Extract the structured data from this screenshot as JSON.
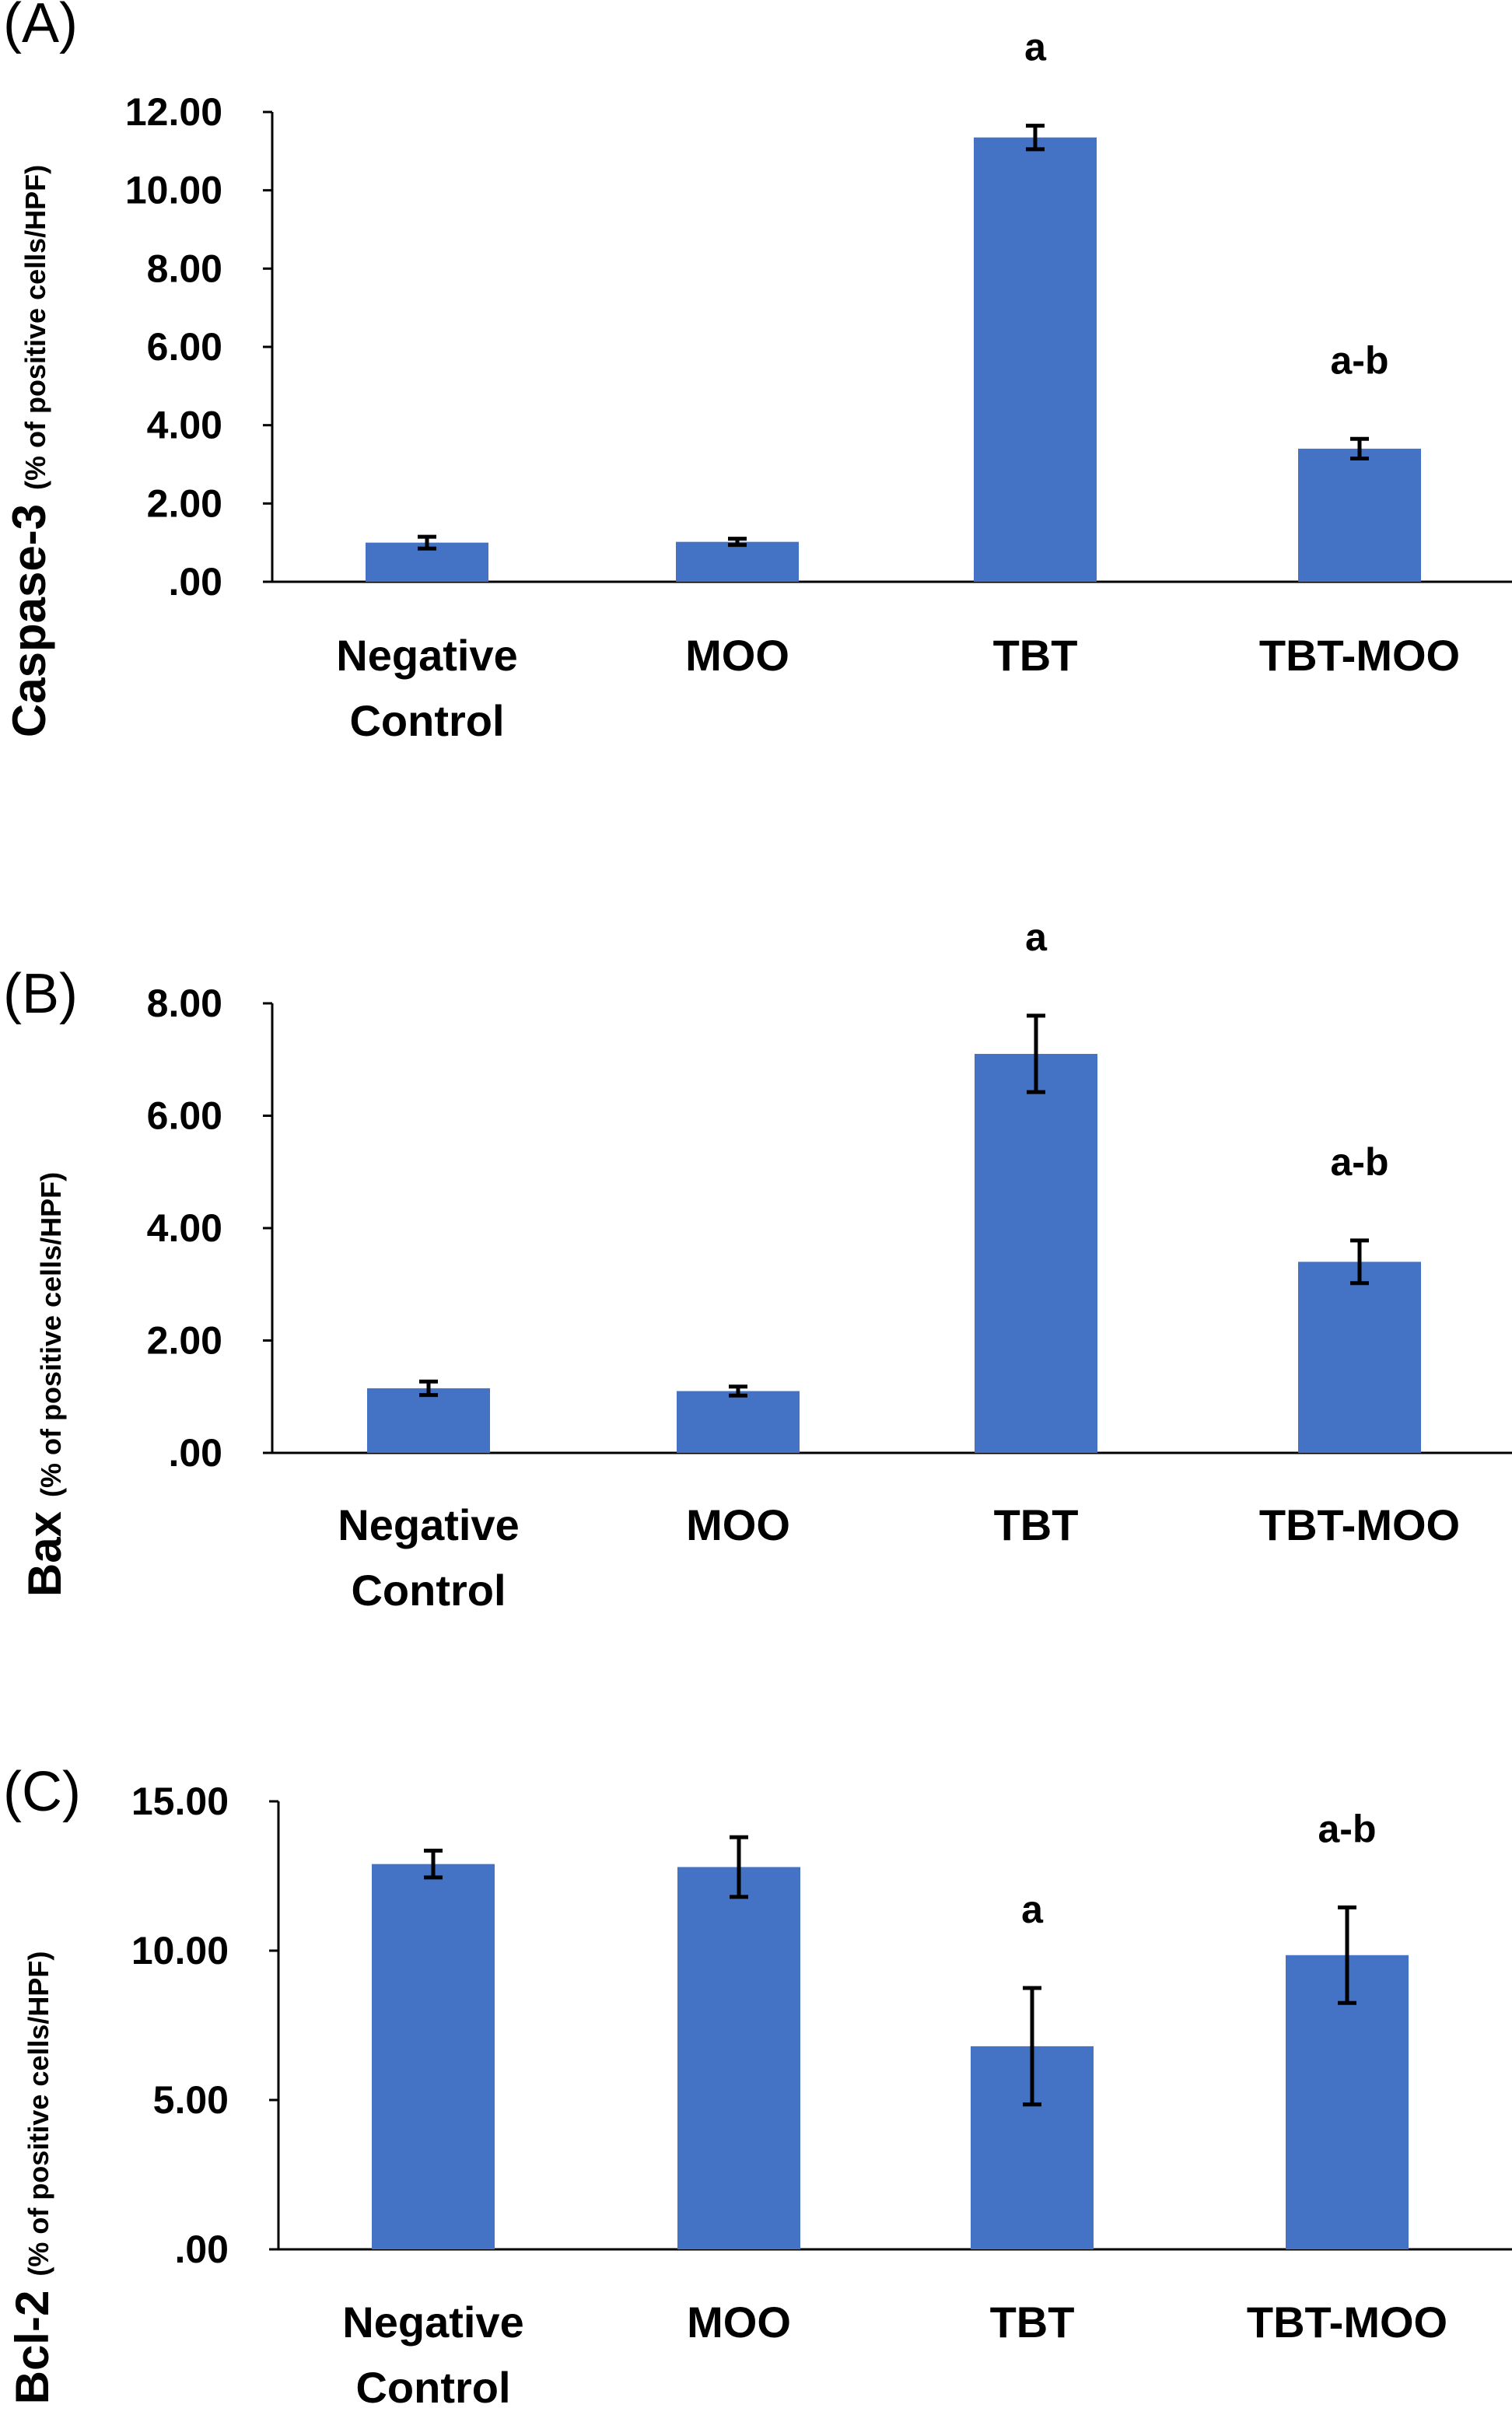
{
  "chart_data": [
    {
      "panel": "(A)",
      "type": "bar",
      "ylabel": "Caspase-3",
      "ylabel_unit": "(% of positive cells/HPF)",
      "ylim": [
        0,
        12
      ],
      "yticks": [
        ".00",
        "2.00",
        "4.00",
        "6.00",
        "8.00",
        "10.00",
        "12.00"
      ],
      "categories": [
        [
          "Negative",
          "Control"
        ],
        [
          "MOO"
        ],
        [
          "TBT"
        ],
        [
          "TBT-MOO"
        ]
      ],
      "values": [
        1.0,
        1.02,
        11.35,
        3.4
      ],
      "errors": [
        0.15,
        0.08,
        0.3,
        0.25
      ],
      "significance": [
        "",
        "",
        "a",
        "a-b"
      ],
      "grid": false,
      "color": "#4472C4"
    },
    {
      "panel": "(B)",
      "type": "bar",
      "ylabel": "Bax",
      "ylabel_unit": "(% of positive cells/HPF)",
      "ylim": [
        0,
        8
      ],
      "yticks": [
        ".00",
        "2.00",
        "4.00",
        "6.00",
        "8.00"
      ],
      "categories": [
        [
          "Negative",
          "Control"
        ],
        [
          "MOO"
        ],
        [
          "TBT"
        ],
        [
          "TBT-MOO"
        ]
      ],
      "values": [
        1.15,
        1.1,
        7.1,
        3.4
      ],
      "errors": [
        0.12,
        0.08,
        0.68,
        0.38
      ],
      "significance": [
        "",
        "",
        "a",
        "a-b"
      ],
      "grid": false,
      "color": "#4472C4"
    },
    {
      "panel": "(C)",
      "type": "bar",
      "ylabel": "Bcl-2",
      "ylabel_unit": "(% of positive cells/HPF)",
      "ylim": [
        0,
        15
      ],
      "yticks": [
        ".00",
        "5.00",
        "10.00",
        "15.00"
      ],
      "categories": [
        [
          "Negative",
          "Control"
        ],
        [
          "MOO"
        ],
        [
          "TBT"
        ],
        [
          "TBT-MOO"
        ]
      ],
      "values": [
        12.9,
        12.8,
        6.8,
        9.85
      ],
      "errors": [
        0.45,
        1.0,
        1.95,
        1.6
      ],
      "significance": [
        "",
        "",
        "a",
        "a-b"
      ],
      "grid": false,
      "color": "#4472C4"
    }
  ]
}
